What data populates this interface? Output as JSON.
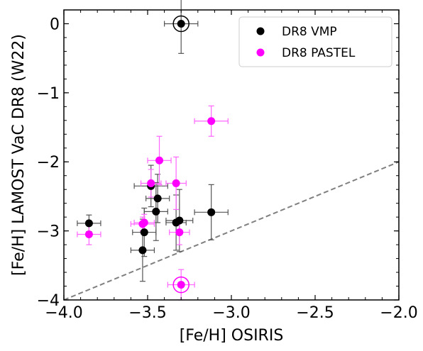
{
  "chart_data": {
    "type": "scatter",
    "xlabel": "[Fe/H] OSIRIS",
    "ylabel": "[Fe/H] LAMOST VaC DR8 (W22)",
    "xlim": [
      -4.0,
      -2.0
    ],
    "ylim": [
      -4.0,
      0.2
    ],
    "x_ticks": [
      -4.0,
      -3.5,
      -3.0,
      -2.5,
      -2.0
    ],
    "x_tick_labels": [
      "−4.0",
      "−3.5",
      "−3.0",
      "−2.5",
      "−2.0"
    ],
    "y_ticks": [
      0,
      -1,
      -2,
      -3,
      -4
    ],
    "y_tick_labels": [
      "0",
      "−1",
      "−2",
      "−3",
      "−4"
    ],
    "legend_position": "top-right",
    "grid": false,
    "reference_line": {
      "style": "dashed",
      "color": "#808080",
      "x": [
        -4.0,
        -2.0
      ],
      "y": [
        -4.0,
        -2.0
      ]
    },
    "series": [
      {
        "name": "DR8 VMP",
        "color": "#000000",
        "errorbar_color": "#555555",
        "points": [
          {
            "x": -3.3,
            "y": 0.0,
            "xerr": 0.1,
            "yerr": 0.43,
            "circled": true
          },
          {
            "x": -3.85,
            "y": -2.89,
            "xerr": 0.07,
            "yerr": 0.12
          },
          {
            "x": -3.48,
            "y": -2.35,
            "xerr": 0.1,
            "yerr": 0.3
          },
          {
            "x": -3.44,
            "y": -2.53,
            "xerr": 0.07,
            "yerr": 0.35
          },
          {
            "x": -3.45,
            "y": -2.72,
            "xerr": 0.07,
            "yerr": 0.42
          },
          {
            "x": -3.52,
            "y": -3.02,
            "xerr": 0.07,
            "yerr": 0.35
          },
          {
            "x": -3.53,
            "y": -3.28,
            "xerr": 0.07,
            "yerr": 0.45
          },
          {
            "x": -3.33,
            "y": -2.88,
            "xerr": 0.06,
            "yerr": 0.4
          },
          {
            "x": -3.31,
            "y": -2.85,
            "xerr": 0.08,
            "yerr": 0.45
          },
          {
            "x": -3.12,
            "y": -2.73,
            "xerr": 0.1,
            "yerr": 0.4
          }
        ]
      },
      {
        "name": "DR8 PASTEL",
        "color": "#ff00ff",
        "errorbar_color": "#ff66ff",
        "points": [
          {
            "x": -3.3,
            "y": -3.78,
            "xerr": 0.08,
            "yerr": 0.22,
            "circled": true
          },
          {
            "x": -3.85,
            "y": -3.05,
            "xerr": 0.07,
            "yerr": 0.15
          },
          {
            "x": -3.43,
            "y": -1.98,
            "xerr": 0.07,
            "yerr": 0.35
          },
          {
            "x": -3.12,
            "y": -1.41,
            "xerr": 0.1,
            "yerr": 0.22
          },
          {
            "x": -3.33,
            "y": -2.31,
            "xerr": 0.06,
            "yerr": 0.38
          },
          {
            "x": -3.48,
            "y": -2.31,
            "xerr": 0.06,
            "yerr": 0.2
          },
          {
            "x": -3.52,
            "y": -2.88,
            "xerr": 0.06,
            "yerr": 0.12
          },
          {
            "x": -3.53,
            "y": -2.9,
            "xerr": 0.07,
            "yerr": 0.1
          },
          {
            "x": -3.31,
            "y": -3.02,
            "xerr": 0.06,
            "yerr": 0.18
          }
        ]
      }
    ]
  }
}
